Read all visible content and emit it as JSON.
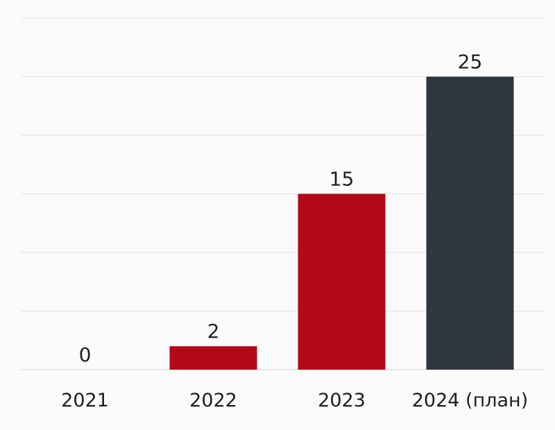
{
  "chart_data": {
    "type": "bar",
    "categories": [
      "2021",
      "2022",
      "2023",
      "2024 (план)"
    ],
    "values": [
      0,
      2,
      15,
      25
    ],
    "data_labels": [
      "0",
      "2",
      "15",
      "25"
    ],
    "title": "",
    "xlabel": "",
    "ylabel": "",
    "ylim": [
      0,
      30
    ],
    "grid": true,
    "legend": "none",
    "bar_colors": [
      "#b10a16",
      "#b10a16",
      "#b10a16",
      "#30363f"
    ]
  }
}
